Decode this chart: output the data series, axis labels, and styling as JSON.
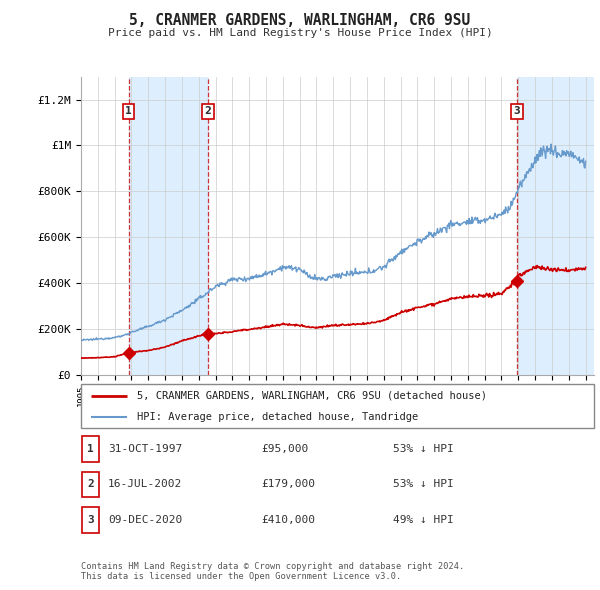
{
  "title": "5, CRANMER GARDENS, WARLINGHAM, CR6 9SU",
  "subtitle": "Price paid vs. HM Land Registry's House Price Index (HPI)",
  "ylabel_ticks": [
    "£0",
    "£200K",
    "£400K",
    "£600K",
    "£800K",
    "£1M",
    "£1.2M"
  ],
  "ytick_vals": [
    0,
    200000,
    400000,
    600000,
    800000,
    1000000,
    1200000
  ],
  "ylim": [
    0,
    1300000
  ],
  "xlim_start": 1995.0,
  "xlim_end": 2025.5,
  "sale_dates": [
    1997.833,
    2002.54,
    2020.92
  ],
  "sale_prices": [
    95000,
    179000,
    410000
  ],
  "sale_labels": [
    "1",
    "2",
    "3"
  ],
  "sale_info": [
    {
      "label": "1",
      "date": "31-OCT-1997",
      "price": "£95,000",
      "hpi": "53% ↓ HPI"
    },
    {
      "label": "2",
      "date": "16-JUL-2002",
      "price": "£179,000",
      "hpi": "53% ↓ HPI"
    },
    {
      "label": "3",
      "date": "09-DEC-2020",
      "price": "£410,000",
      "hpi": "49% ↓ HPI"
    }
  ],
  "legend_line1": "5, CRANMER GARDENS, WARLINGHAM, CR6 9SU (detached house)",
  "legend_line2": "HPI: Average price, detached house, Tandridge",
  "footer": "Contains HM Land Registry data © Crown copyright and database right 2024.\nThis data is licensed under the Open Government Licence v3.0.",
  "background_color": "#ffffff",
  "grid_color": "#cccccc",
  "hpi_line_color": "#6699cc",
  "sale_line_color": "#cc0000",
  "shade_color": "#ddeeff",
  "vline_color": "#cc3333",
  "hpi_anchors_x": [
    1995.0,
    1996.0,
    1997.0,
    1997.5,
    1998.0,
    1999.0,
    2000.0,
    2001.0,
    2002.0,
    2003.0,
    2004.0,
    2005.0,
    2006.0,
    2007.0,
    2008.0,
    2008.5,
    2009.0,
    2009.5,
    2010.0,
    2011.0,
    2012.0,
    2013.0,
    2014.0,
    2015.0,
    2016.0,
    2017.0,
    2018.0,
    2019.0,
    2020.0,
    2020.5,
    2021.0,
    2021.5,
    2022.0,
    2022.5,
    2023.0,
    2023.5,
    2024.0,
    2024.5,
    2025.0
  ],
  "hpi_anchors_y": [
    150000,
    155000,
    162000,
    170000,
    185000,
    210000,
    240000,
    280000,
    330000,
    385000,
    415000,
    420000,
    440000,
    470000,
    460000,
    430000,
    420000,
    415000,
    430000,
    440000,
    445000,
    470000,
    535000,
    580000,
    615000,
    655000,
    665000,
    675000,
    700000,
    730000,
    810000,
    870000,
    940000,
    980000,
    980000,
    960000,
    970000,
    940000,
    920000
  ],
  "red_anchors_x": [
    1995.0,
    1996.0,
    1997.0,
    1997.833,
    1998.0,
    1999.0,
    2000.0,
    2001.0,
    2002.0,
    2002.54,
    2003.0,
    2004.0,
    2005.0,
    2006.0,
    2007.0,
    2008.0,
    2009.0,
    2010.0,
    2011.0,
    2012.0,
    2013.0,
    2014.0,
    2015.0,
    2016.0,
    2017.0,
    2018.0,
    2019.0,
    2020.0,
    2020.92,
    2021.0,
    2021.5,
    2022.0,
    2022.5,
    2023.0,
    2023.5,
    2024.0,
    2024.5,
    2025.0
  ],
  "red_anchors_y": [
    72000,
    74000,
    78000,
    95000,
    98000,
    105000,
    120000,
    148000,
    168000,
    179000,
    178000,
    188000,
    198000,
    208000,
    220000,
    215000,
    205000,
    215000,
    218000,
    222000,
    238000,
    272000,
    292000,
    310000,
    330000,
    340000,
    342000,
    355000,
    410000,
    430000,
    450000,
    470000,
    465000,
    460000,
    455000,
    455000,
    460000,
    462000
  ]
}
